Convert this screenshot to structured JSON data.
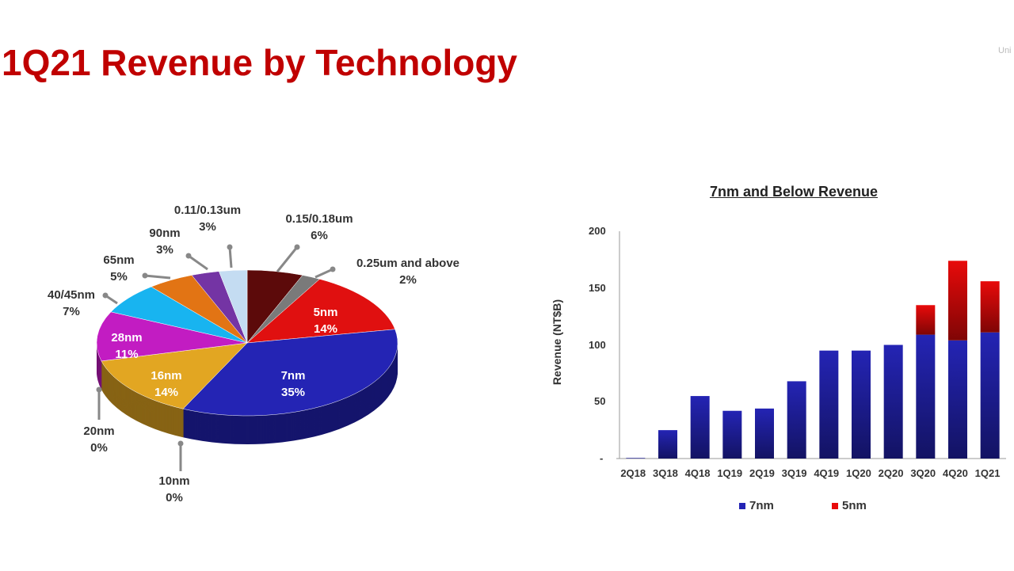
{
  "title": "1Q21 Revenue by Technology",
  "logo_text": "Uni",
  "chart_data": [
    {
      "type": "pie",
      "slices": [
        {
          "label": "0.15/0.18um",
          "value": 6,
          "color": "#5c0a0a"
        },
        {
          "label": "0.25um and above",
          "value": 2,
          "color": "#7a7a7a"
        },
        {
          "label": "5nm",
          "value": 14,
          "color": "#e01010"
        },
        {
          "label": "7nm",
          "value": 35,
          "color": "#2424b4"
        },
        {
          "label": "10nm",
          "value": 0,
          "color": "#888888"
        },
        {
          "label": "20nm",
          "value": 0,
          "color": "#888888"
        },
        {
          "label": "16nm",
          "value": 14,
          "color": "#e2a622"
        },
        {
          "label": "28nm",
          "value": 11,
          "color": "#c21cc2"
        },
        {
          "label": "40/45nm",
          "value": 7,
          "color": "#18b4f0"
        },
        {
          "label": "65nm",
          "value": 5,
          "color": "#e27414"
        },
        {
          "label": "90nm",
          "value": 3,
          "color": "#7434a4"
        },
        {
          "label": "0.11/0.13um",
          "value": 3,
          "color": "#c4dcf2"
        }
      ]
    },
    {
      "type": "bar",
      "stacked": true,
      "title": "7nm and Below Revenue",
      "ylabel": "Revenue (NT$B)",
      "ylim": [
        0,
        200
      ],
      "yticks": [
        0,
        50,
        100,
        150,
        200
      ],
      "categories": [
        "2Q18",
        "3Q18",
        "4Q18",
        "1Q19",
        "2Q19",
        "3Q19",
        "4Q19",
        "1Q20",
        "2Q20",
        "3Q20",
        "4Q20",
        "1Q21"
      ],
      "series": [
        {
          "name": "7nm",
          "color": "#2424b4",
          "values": [
            0.5,
            25,
            55,
            42,
            44,
            68,
            95,
            95,
            100,
            109,
            104,
            111
          ]
        },
        {
          "name": "5nm",
          "color": "#e80a0a",
          "values": [
            0,
            0,
            0,
            0,
            0,
            0,
            0,
            0,
            0,
            26,
            70,
            45
          ]
        }
      ],
      "legend": "bottom"
    }
  ]
}
